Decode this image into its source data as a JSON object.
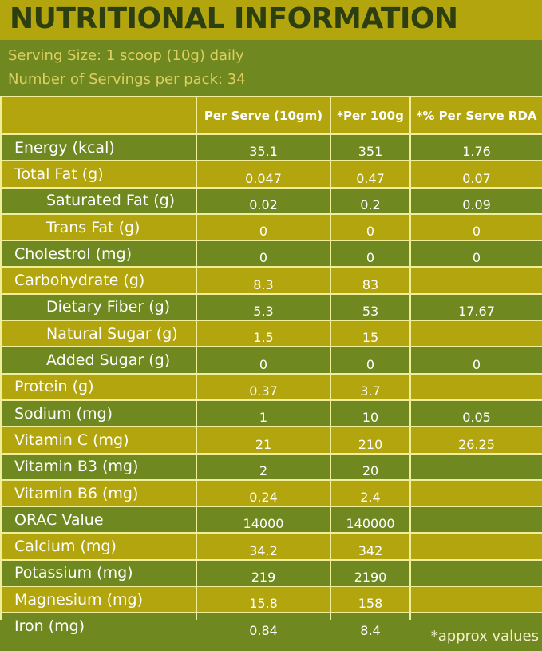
{
  "title": "NUTRITIONAL INFORMATION",
  "serving_size": "Serving Size: 1 scoop (10g) daily",
  "servings_per_pack": "Number of Servings per pack: 34",
  "headers": [
    "Per Serve (10gm)",
    "*Per 100g",
    "*% Per Serve RDA"
  ],
  "rows": [
    {
      "label": "Energy (kcal)",
      "sub": false,
      "per_serve": "35.1",
      "per_100g": "351",
      "rda": "1.76"
    },
    {
      "label": "Total Fat (g)",
      "sub": false,
      "per_serve": "0.047",
      "per_100g": "0.47",
      "rda": "0.07"
    },
    {
      "label": "Saturated Fat (g)",
      "sub": true,
      "per_serve": "0.02",
      "per_100g": "0.2",
      "rda": "0.09"
    },
    {
      "label": "Trans Fat (g)",
      "sub": true,
      "per_serve": "0",
      "per_100g": "0",
      "rda": "0"
    },
    {
      "label": "Cholestrol (mg)",
      "sub": false,
      "per_serve": "0",
      "per_100g": "0",
      "rda": "0"
    },
    {
      "label": "Carbohydrate (g)",
      "sub": false,
      "per_serve": "8.3",
      "per_100g": "83",
      "rda": ""
    },
    {
      "label": "Dietary Fiber (g)",
      "sub": true,
      "per_serve": "5.3",
      "per_100g": "53",
      "rda": "17.67"
    },
    {
      "label": "Natural Sugar (g)",
      "sub": true,
      "per_serve": "1.5",
      "per_100g": "15",
      "rda": ""
    },
    {
      "label": "Added Sugar (g)",
      "sub": true,
      "per_serve": "0",
      "per_100g": "0",
      "rda": "0"
    },
    {
      "label": "Protein (g)",
      "sub": false,
      "per_serve": "0.37",
      "per_100g": "3.7",
      "rda": ""
    },
    {
      "label": "Sodium (mg)",
      "sub": false,
      "per_serve": "1",
      "per_100g": "10",
      "rda": "0.05"
    },
    {
      "label": "Vitamin C (mg)",
      "sub": false,
      "per_serve": "21",
      "per_100g": "210",
      "rda": "26.25"
    },
    {
      "label": "Vitamin B3 (mg)",
      "sub": false,
      "per_serve": "2",
      "per_100g": "20",
      "rda": ""
    },
    {
      "label": "Vitamin B6 (mg)",
      "sub": false,
      "per_serve": "0.24",
      "per_100g": "2.4",
      "rda": ""
    },
    {
      "label": "ORAC Value",
      "sub": false,
      "per_serve": "14000",
      "per_100g": "140000",
      "rda": ""
    },
    {
      "label": "Calcium (mg)",
      "sub": false,
      "per_serve": "34.2",
      "per_100g": "342",
      "rda": ""
    },
    {
      "label": "Potassium (mg)",
      "sub": false,
      "per_serve": "219",
      "per_100g": "2190",
      "rda": ""
    },
    {
      "label": "Magnesium (mg)",
      "sub": false,
      "per_serve": "15.8",
      "per_100g": "158",
      "rda": ""
    },
    {
      "label": "Iron (mg)",
      "sub": false,
      "per_serve": "0.84",
      "per_100g": "8.4",
      "rda": ""
    }
  ],
  "footnote": "*approx values",
  "colors": {
    "olive": "#6f8920",
    "mustard": "#b2a50e",
    "grid": "#f1ee9a",
    "title_text": "#2d3e10",
    "info_text": "#ddd060"
  }
}
